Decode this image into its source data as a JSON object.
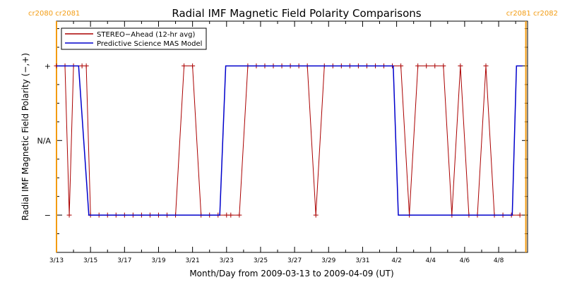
{
  "chart_data": {
    "type": "line",
    "title": "Radial IMF Magnetic Field Polarity Comparisons",
    "xlabel": "Month/Day from 2009-03-13 to 2009-04-09 (UT)",
    "ylabel": "Radial IMF Magnetic Field Polarity (−,+)",
    "x_tick_labels": [
      "3/13",
      "3/15",
      "3/17",
      "3/19",
      "3/21",
      "3/23",
      "3/25",
      "3/27",
      "3/29",
      "3/31",
      "4/2",
      "4/4",
      "4/6",
      "4/8"
    ],
    "x_ticks_day": [
      0,
      2,
      4,
      6,
      8,
      10,
      12,
      14,
      16,
      18,
      20,
      22,
      24,
      26
    ],
    "x_range_day": [
      0,
      27.7
    ],
    "y_tick_labels": [
      "+",
      "N/A",
      "−"
    ],
    "y_ticks": [
      1,
      0,
      -1
    ],
    "y_range": [
      -1.5,
      1.6
    ],
    "grid": false,
    "legend_position": "top-left",
    "carrington_markers": [
      {
        "day": 0.0,
        "labels": [
          "cr2080",
          "cr2081"
        ],
        "label_side": "left"
      },
      {
        "day": 27.6,
        "labels": [
          "cr2081",
          "cr2082"
        ],
        "label_side": "right"
      }
    ],
    "marker_color": "#f39c12",
    "series": [
      {
        "name": "STEREO−Ahead (12-hr avg)",
        "color": "#aa0000",
        "marker": "+",
        "points": [
          [
            0.0,
            1
          ],
          [
            0.5,
            1
          ],
          [
            0.75,
            -1
          ],
          [
            1.0,
            1
          ],
          [
            1.5,
            1
          ],
          [
            1.75,
            1
          ],
          [
            2.0,
            -1
          ],
          [
            2.5,
            -1
          ],
          [
            3.0,
            -1
          ],
          [
            3.5,
            -1
          ],
          [
            4.0,
            -1
          ],
          [
            4.5,
            -1
          ],
          [
            5.0,
            -1
          ],
          [
            5.5,
            -1
          ],
          [
            6.0,
            -1
          ],
          [
            6.5,
            -1
          ],
          [
            7.0,
            -1
          ],
          [
            7.5,
            1
          ],
          [
            8.0,
            1
          ],
          [
            8.5,
            -1
          ],
          [
            9.0,
            -1
          ],
          [
            9.5,
            -1
          ],
          [
            10.0,
            -1
          ],
          [
            10.25,
            -1
          ],
          [
            10.75,
            -1
          ],
          [
            11.25,
            1
          ],
          [
            11.75,
            1
          ],
          [
            12.25,
            1
          ],
          [
            12.75,
            1
          ],
          [
            13.25,
            1
          ],
          [
            13.75,
            1
          ],
          [
            14.25,
            1
          ],
          [
            14.75,
            1
          ],
          [
            15.25,
            -1
          ],
          [
            15.75,
            1
          ],
          [
            16.25,
            1
          ],
          [
            16.75,
            1
          ],
          [
            17.25,
            1
          ],
          [
            17.75,
            1
          ],
          [
            18.25,
            1
          ],
          [
            18.75,
            1
          ],
          [
            19.25,
            1
          ],
          [
            19.75,
            1
          ],
          [
            20.25,
            1
          ],
          [
            20.75,
            -1
          ],
          [
            21.25,
            1
          ],
          [
            21.75,
            1
          ],
          [
            22.25,
            1
          ],
          [
            22.75,
            1
          ],
          [
            23.25,
            -1
          ],
          [
            23.75,
            1
          ],
          [
            24.25,
            -1
          ],
          [
            24.75,
            -1
          ],
          [
            25.25,
            1
          ],
          [
            25.75,
            -1
          ],
          [
            26.25,
            -1
          ],
          [
            26.75,
            -1
          ],
          [
            27.25,
            -1
          ]
        ]
      },
      {
        "name": "Predictive Science MAS Model",
        "color": "#0000cc",
        "marker": "none",
        "points": [
          [
            0.0,
            1
          ],
          [
            1.3,
            1
          ],
          [
            1.9,
            -1
          ],
          [
            9.6,
            -1
          ],
          [
            9.95,
            1
          ],
          [
            19.8,
            1
          ],
          [
            20.1,
            -1
          ],
          [
            26.8,
            -1
          ],
          [
            27.05,
            1
          ],
          [
            27.4,
            1
          ]
        ]
      }
    ]
  }
}
